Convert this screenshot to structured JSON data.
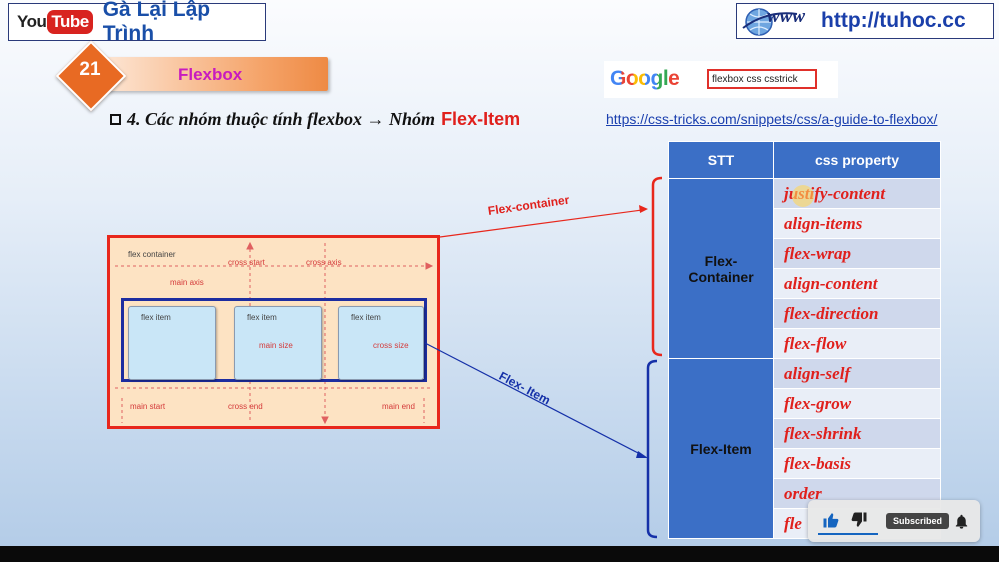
{
  "header": {
    "youtube_you": "You",
    "youtube_tube": "Tube",
    "channel": "Gà Lại Lập Trình",
    "logo_text": "www",
    "site": "http://tuhoc.cc"
  },
  "lesson": {
    "number": "21",
    "title": "Flexbox"
  },
  "google": {
    "logo": "Google",
    "query": "flexbox css csstrick"
  },
  "subtitle": {
    "text": "4. Các nhóm thuộc tính flexbox → Nhóm ",
    "highlight": "Flex-Item"
  },
  "link": "https://css-tricks.com/snippets/css/a-guide-to-flexbox/",
  "diagram": {
    "flex_container": "flex container",
    "cross_start": "cross start",
    "cross_axis": "cross axis",
    "main_axis": "main axis",
    "item1": "flex item",
    "item2": "flex item",
    "item3": "flex item",
    "main_size": "main size",
    "cross_size": "cross size",
    "main_start": "main start",
    "cross_end": "cross end",
    "main_end": "main end"
  },
  "annotations": {
    "container": "Flex-container",
    "item": "Flex- Item"
  },
  "table": {
    "headers": [
      "STT",
      "css property"
    ],
    "group1": "Flex-\nContainer",
    "group2": "Flex-Item",
    "props": [
      "justify-content",
      "align-items",
      "flex-wrap",
      "align-content",
      "flex-direction",
      "flex-flow",
      "align-self",
      "flex-grow",
      "flex-shrink",
      "flex-basis",
      "order",
      "fle"
    ]
  },
  "overlay": {
    "subscribed": "Subscribed"
  },
  "colors": {
    "accent_red": "#e0201c",
    "table_blue": "#3b6fc6",
    "brand_blue": "#1a4fa8"
  }
}
